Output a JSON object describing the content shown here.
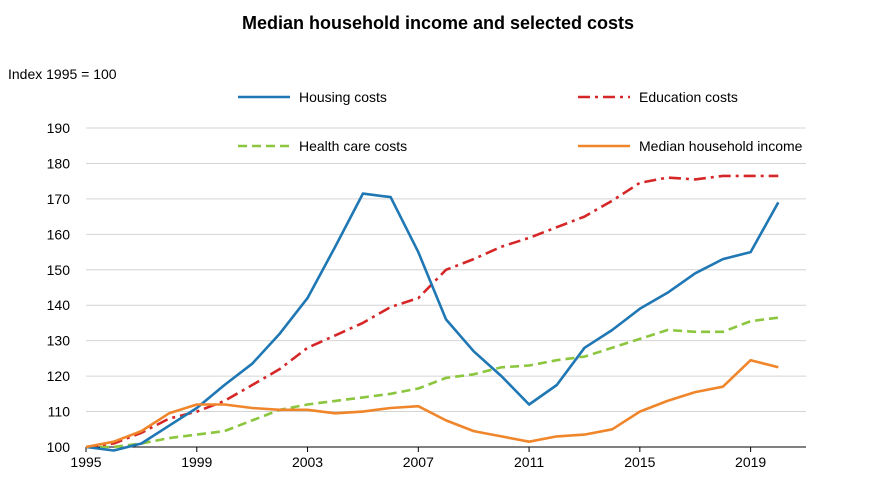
{
  "chart_data": {
    "type": "line",
    "title": "Median household income and selected costs",
    "ylabel": "Index 1995 = 100",
    "xlabel": "",
    "xlim": [
      1995,
      2021
    ],
    "ylim": [
      100,
      190
    ],
    "x_ticks": [
      1995,
      1999,
      2003,
      2007,
      2011,
      2015,
      2019
    ],
    "y_ticks": [
      100,
      110,
      120,
      130,
      140,
      150,
      160,
      170,
      180,
      190
    ],
    "grid": "horizontal",
    "legend": "top",
    "x": [
      1995,
      1996,
      1997,
      1998,
      1999,
      2000,
      2001,
      2002,
      2003,
      2004,
      2005,
      2006,
      2007,
      2008,
      2009,
      2010,
      2011,
      2012,
      2013,
      2014,
      2015,
      2016,
      2017,
      2018,
      2019,
      2020
    ],
    "series": [
      {
        "name": "Housing costs",
        "color": "#1f77b4",
        "style": "solid",
        "values": [
          100,
          99,
          101,
          106,
          111,
          117.5,
          123.5,
          132,
          142,
          156.5,
          171.5,
          170.5,
          155,
          136,
          127,
          120,
          112,
          117.5,
          128,
          133,
          139,
          143.5,
          149,
          153,
          155,
          169
        ]
      },
      {
        "name": "Education costs",
        "color": "#d62728",
        "style": "dashdot",
        "values": [
          100,
          101,
          104,
          108,
          110,
          113,
          117.5,
          122,
          128,
          131.5,
          135,
          139.5,
          142,
          150,
          153,
          156.5,
          159,
          162,
          165,
          169.5,
          174.5,
          176,
          175.5,
          176.5,
          176.5,
          176.5
        ]
      },
      {
        "name": "Health care costs",
        "color": "#8cc63f",
        "style": "dashed",
        "values": [
          100,
          100,
          101,
          102.5,
          103.5,
          104.5,
          107.5,
          110.5,
          112,
          113,
          114,
          115,
          116.5,
          119.5,
          120.5,
          122.5,
          123,
          124.5,
          125.5,
          128,
          130.5,
          133,
          132.5,
          132.5,
          135.5,
          136.5
        ]
      },
      {
        "name": "Median household income",
        "color": "#f0862b",
        "style": "solid",
        "values": [
          100,
          101.5,
          104.5,
          109.5,
          112,
          112,
          111,
          110.5,
          110.5,
          109.5,
          110,
          111,
          111.5,
          107.5,
          104.5,
          103,
          101.5,
          103,
          103.5,
          105,
          110,
          113,
          115.5,
          117,
          124.5,
          122.5
        ]
      }
    ]
  }
}
